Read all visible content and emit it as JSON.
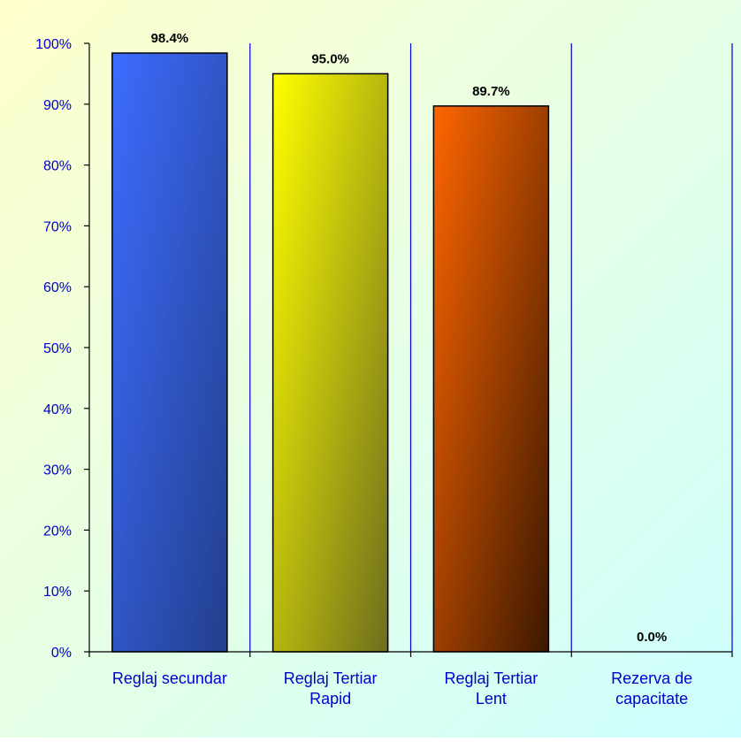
{
  "chart_data": {
    "type": "bar",
    "categories": [
      [
        "Reglaj secundar"
      ],
      [
        "Reglaj Tertiar",
        "Rapid"
      ],
      [
        "Reglaj Tertiar",
        "Lent"
      ],
      [
        "Rezerva de",
        "capacitate"
      ]
    ],
    "values": [
      98.4,
      95.0,
      89.7,
      0.0
    ],
    "data_labels": [
      "98.4%",
      "95.0%",
      "89.7%",
      "0.0%"
    ],
    "y_ticks": [
      "0%",
      "10%",
      "20%",
      "30%",
      "40%",
      "50%",
      "60%",
      "70%",
      "80%",
      "90%",
      "100%"
    ],
    "ylim": [
      0,
      100
    ],
    "title": "",
    "xlabel": "",
    "ylabel": "",
    "grid": "vertical category separators",
    "legend": "none",
    "colors": {
      "bars": [
        {
          "light": "#3d6cff",
          "dark": "#223f8c"
        },
        {
          "light": "#ffff00",
          "dark": "#6e6e1e"
        },
        {
          "light": "#ff6600",
          "dark": "#3c1800"
        }
      ],
      "axis_text": "#0000cc",
      "separator": "#0000cc",
      "background_top": "#ffffcc",
      "background_bottom": "#ccffff"
    }
  }
}
